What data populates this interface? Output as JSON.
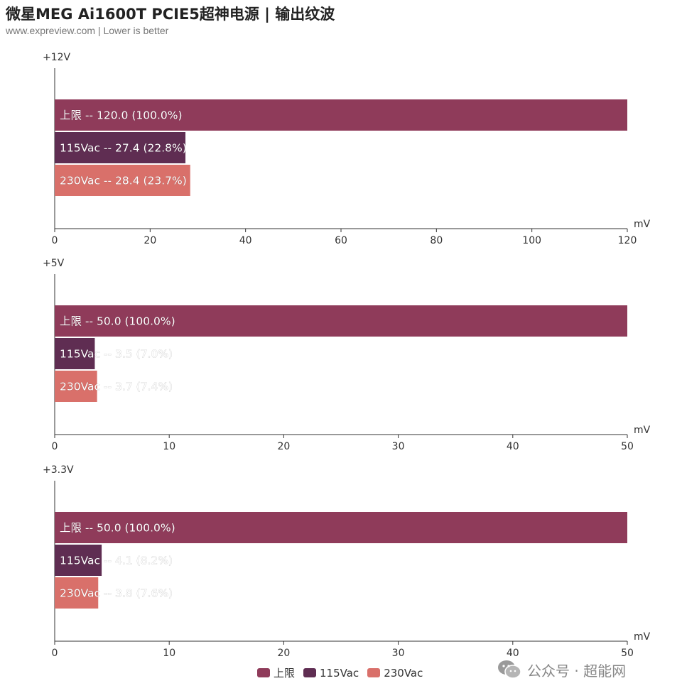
{
  "title": "微星MEG Ai1600T PCIE5超神电源 | 输出纹波",
  "subtitle": "www.expreview.com | Lower is better",
  "colors": {
    "limit": "#8f3b5a",
    "v115": "#5f2d52",
    "v230": "#d9706a",
    "axis": "#333333"
  },
  "legend": [
    {
      "label": "上限",
      "color": "#8f3b5a"
    },
    {
      "label": "115Vac",
      "color": "#5f2d52"
    },
    {
      "label": "230Vac",
      "color": "#d9706a"
    }
  ],
  "watermark": {
    "icon": "wechat-icon",
    "text": "公众号 · 超能网"
  },
  "chart_data": [
    {
      "type": "bar",
      "orientation": "horizontal",
      "title": "+12V",
      "xlabel": "mV",
      "xlim": [
        0,
        120
      ],
      "ticks": [
        0,
        20,
        40,
        60,
        80,
        100,
        120
      ],
      "series": [
        {
          "name": "上限",
          "value": 120.0,
          "label": "上限  --  120.0  (100.0%)"
        },
        {
          "name": "115Vac",
          "value": 27.4,
          "label": "115Vac  --  27.4  (22.8%)"
        },
        {
          "name": "230Vac",
          "value": 28.4,
          "label": "230Vac  --  28.4  (23.7%)"
        }
      ]
    },
    {
      "type": "bar",
      "orientation": "horizontal",
      "title": "+5V",
      "xlabel": "mV",
      "xlim": [
        0,
        50
      ],
      "ticks": [
        0,
        10,
        20,
        30,
        40,
        50
      ],
      "series": [
        {
          "name": "上限",
          "value": 50.0,
          "label": "上限  --  50.0  (100.0%)"
        },
        {
          "name": "115Vac",
          "value": 3.5,
          "label": "115Vac  --  3.5  (7.0%)"
        },
        {
          "name": "230Vac",
          "value": 3.7,
          "label": "230Vac  --  3.7  (7.4%)"
        }
      ]
    },
    {
      "type": "bar",
      "orientation": "horizontal",
      "title": "+3.3V",
      "xlabel": "mV",
      "xlim": [
        0,
        50
      ],
      "ticks": [
        0,
        10,
        20,
        30,
        40,
        50
      ],
      "series": [
        {
          "name": "上限",
          "value": 50.0,
          "label": "上限  --  50.0  (100.0%)"
        },
        {
          "name": "115Vac",
          "value": 4.1,
          "label": "115Vac  --  4.1  (8.2%)"
        },
        {
          "name": "230Vac",
          "value": 3.8,
          "label": "230Vac  --  3.8  (7.6%)"
        }
      ]
    }
  ]
}
